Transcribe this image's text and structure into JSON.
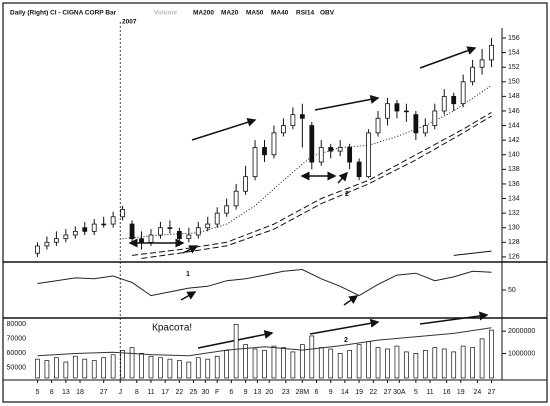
{
  "chart_data": [
    {
      "type": "candlestick",
      "title": "Daily (Right) CI - CIGNA CORP Bar",
      "subtitle": "2007",
      "x": [
        0,
        2,
        4,
        6,
        8,
        10,
        12,
        14,
        16,
        18,
        20,
        22,
        24,
        26,
        28,
        30,
        32,
        34,
        36,
        38,
        40,
        42,
        44,
        46,
        48,
        50,
        52,
        54,
        56,
        58,
        60,
        62,
        64,
        66,
        68,
        70,
        72,
        74,
        76,
        78,
        80,
        82,
        84,
        86,
        88,
        90,
        92,
        94,
        96
      ],
      "open": [
        126.5,
        127.5,
        128,
        128.5,
        129,
        130,
        129.5,
        130.5,
        130.5,
        131.5,
        130.5,
        128.5,
        128,
        129,
        130,
        129.5,
        128.5,
        129,
        130,
        130.5,
        132,
        133,
        135,
        137,
        141,
        140,
        143,
        144,
        145.5,
        144,
        139,
        141,
        140.5,
        141,
        139,
        137,
        143,
        145,
        147,
        146,
        145.5,
        143,
        144,
        146,
        148,
        147,
        150,
        152,
        153
      ],
      "high": [
        128,
        128.8,
        129.5,
        129.8,
        130.2,
        130.8,
        131.2,
        131.5,
        132.2,
        133,
        131,
        129.5,
        129.8,
        130.8,
        131,
        130,
        130,
        130.8,
        131.5,
        132.8,
        134,
        136,
        138.5,
        142,
        142,
        144,
        145,
        146.5,
        147,
        144.5,
        142,
        141.5,
        142,
        141.5,
        139.5,
        143.5,
        146,
        147.8,
        147.5,
        147,
        146,
        145,
        147,
        149,
        148.5,
        151,
        153,
        154.5,
        156
      ],
      "low": [
        126,
        127,
        127.5,
        128,
        128.5,
        129,
        129,
        130,
        130,
        131,
        128,
        127,
        127.5,
        128.5,
        129.2,
        127.5,
        128,
        128.5,
        129.5,
        130,
        131.5,
        132.5,
        134.5,
        136.5,
        139,
        139.5,
        142.5,
        143.5,
        141,
        138,
        138.5,
        139.5,
        139.8,
        138,
        136.5,
        136.8,
        142.5,
        144,
        145,
        144.5,
        142,
        142.5,
        143.5,
        145.5,
        146,
        146.5,
        149.5,
        151,
        152
      ],
      "close": [
        127.5,
        128,
        128.5,
        129,
        129.5,
        129.5,
        130.5,
        130.5,
        131.5,
        132.5,
        128.5,
        128,
        129,
        130,
        130,
        128.5,
        129,
        130,
        130.5,
        132,
        133,
        135,
        137,
        141,
        140,
        143,
        144,
        145.5,
        145,
        139,
        141,
        140.5,
        141,
        139,
        137,
        143,
        145,
        147,
        146,
        146,
        143,
        144,
        146,
        148,
        147,
        150,
        152,
        153,
        155
      ],
      "lines": [
        {
          "name": "MA200",
          "style": "solid",
          "x": [
            88,
            96
          ],
          "values": [
            126.2,
            126.8
          ]
        },
        {
          "name": "MA20",
          "style": "dotted",
          "x": [
            18,
            26,
            34,
            40,
            46,
            52,
            58,
            64,
            70,
            76,
            82,
            88,
            96
          ],
          "values": [
            128.5,
            129,
            129.3,
            130.5,
            133,
            136.5,
            139.8,
            141,
            141.3,
            142.5,
            144,
            146,
            149.5
          ]
        },
        {
          "name": "MA50",
          "style": "dashed",
          "x": [
            20,
            30,
            40,
            50,
            60,
            70,
            80,
            90,
            96
          ],
          "values": [
            126.2,
            127,
            128,
            130.5,
            134,
            136.5,
            140,
            143.5,
            145.8
          ]
        },
        {
          "name": "MA40",
          "style": "dashed",
          "x": [
            22,
            30,
            40,
            50,
            60,
            70,
            80,
            90,
            96
          ],
          "values": [
            125.8,
            126.5,
            127.5,
            129.8,
            133.3,
            136,
            139.3,
            143,
            145.3
          ]
        }
      ],
      "xlim": [
        -2,
        98
      ],
      "xticks": [
        {
          "value": 0,
          "label": "5"
        },
        {
          "value": 3,
          "label": "8"
        },
        {
          "value": 6,
          "label": "13"
        },
        {
          "value": 9,
          "label": "18"
        },
        {
          "value": 14,
          "label": "27"
        },
        {
          "value": 17.5,
          "label": "J"
        },
        {
          "value": 21,
          "label": "8"
        },
        {
          "value": 24,
          "label": "11"
        },
        {
          "value": 27,
          "label": "17"
        },
        {
          "value": 30,
          "label": "22"
        },
        {
          "value": 33,
          "label": "25"
        },
        {
          "value": 35.5,
          "label": "30"
        },
        {
          "value": 38,
          "label": "F"
        },
        {
          "value": 41,
          "label": "6"
        },
        {
          "value": 44,
          "label": "9"
        },
        {
          "value": 46.5,
          "label": "13"
        },
        {
          "value": 49,
          "label": "20"
        },
        {
          "value": 52.5,
          "label": "23"
        },
        {
          "value": 56,
          "label": "28M"
        },
        {
          "value": 59,
          "label": "6"
        },
        {
          "value": 62,
          "label": "9"
        },
        {
          "value": 65,
          "label": "14"
        },
        {
          "value": 68,
          "label": "19"
        },
        {
          "value": 71,
          "label": "22"
        },
        {
          "value": 74,
          "label": "27"
        },
        {
          "value": 76.5,
          "label": "30A"
        },
        {
          "value": 80,
          "label": "5"
        },
        {
          "value": 83,
          "label": "11"
        },
        {
          "value": 86.5,
          "label": "16"
        },
        {
          "value": 89.5,
          "label": "19"
        },
        {
          "value": 93,
          "label": "24"
        },
        {
          "value": 96,
          "label": "27"
        }
      ],
      "separator_x": 17.5,
      "ylim": [
        125.3,
        157.1
      ],
      "yticks": [
        126,
        128,
        130,
        132,
        134,
        136,
        138,
        140,
        142,
        144,
        146,
        148,
        150,
        152,
        154,
        156
      ],
      "annotations": [
        "2"
      ]
    },
    {
      "type": "line",
      "series": [
        {
          "name": "RSI14",
          "color": "#222",
          "x": [
            0,
            4,
            8,
            12,
            16,
            20,
            24,
            28,
            32,
            36,
            40,
            44,
            48,
            52,
            56,
            60,
            64,
            68,
            72,
            76,
            80,
            84,
            88,
            92,
            96
          ],
          "values": [
            57,
            60,
            63,
            62,
            65,
            58,
            44,
            48,
            52,
            54,
            60,
            62,
            66,
            70,
            72,
            62,
            54,
            44,
            56,
            66,
            68,
            60,
            64,
            70,
            69
          ]
        }
      ],
      "ylim": [
        20,
        80
      ],
      "yticks": [
        50
      ],
      "annotations": [
        "1"
      ]
    },
    {
      "type": "bar",
      "series": [
        {
          "name": "Volume",
          "color": "#ffffff",
          "x": [
            0,
            2,
            4,
            6,
            8,
            10,
            12,
            14,
            16,
            18,
            20,
            22,
            24,
            26,
            28,
            30,
            32,
            34,
            36,
            38,
            40,
            42,
            44,
            46,
            48,
            50,
            52,
            54,
            56,
            58,
            60,
            62,
            64,
            66,
            68,
            70,
            72,
            74,
            76,
            78,
            80,
            82,
            84,
            86,
            88,
            90,
            92,
            94,
            96
          ],
          "values": [
            56000,
            55000,
            57000,
            54000,
            58000,
            56000,
            55000,
            57000,
            59000,
            62000,
            64000,
            60000,
            58000,
            57000,
            56000,
            55000,
            54000,
            57000,
            56000,
            58000,
            62000,
            80000,
            66000,
            63000,
            62000,
            65000,
            64000,
            61000,
            66000,
            72000,
            64000,
            63000,
            60000,
            62000,
            66000,
            68000,
            64000,
            63000,
            65000,
            61000,
            60000,
            62000,
            64000,
            63000,
            61000,
            65000,
            64000,
            70000,
            76000
          ]
        },
        {
          "name": "OBV",
          "color": "#333",
          "axis": "y2",
          "x": [
            0,
            8,
            16,
            24,
            32,
            40,
            48,
            56,
            64,
            72,
            80,
            88,
            96
          ],
          "values": [
            900000,
            1000000,
            1050000,
            950000,
            900000,
            1150000,
            1300000,
            1150000,
            1350000,
            1600000,
            1750000,
            1900000,
            2150000
          ]
        }
      ],
      "ylim": [
        43000,
        83000
      ],
      "yticks": [
        50000,
        60000,
        70000,
        80000
      ],
      "y2lim": [
        -100000,
        2500000
      ],
      "y2ticks": [
        1000000,
        2000000
      ],
      "annotations": [
        "Красота!",
        "2"
      ]
    }
  ]
}
